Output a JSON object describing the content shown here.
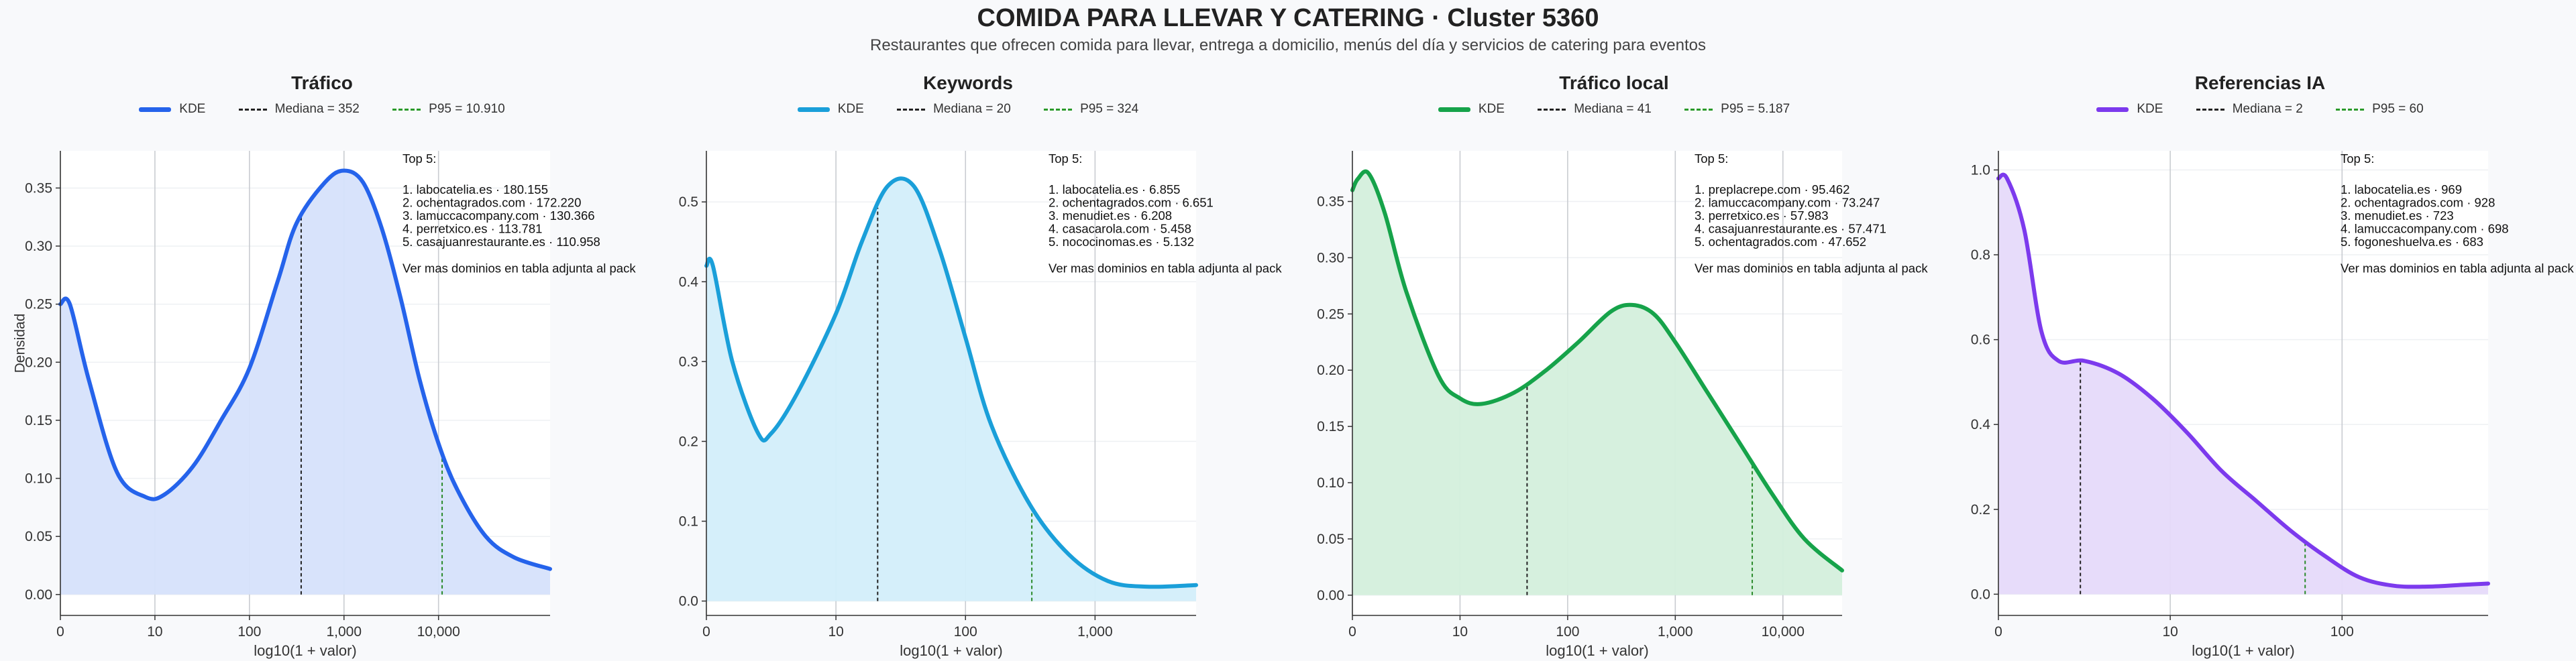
{
  "page": {
    "title": "COMIDA PARA LLEVAR Y CATERING · Cluster 5360",
    "subtitle": "Restaurantes que ofrecen comida para llevar, entrega a domicilio, menús del día y servicios de catering para eventos",
    "ylabel": "Densidad"
  },
  "chart_data": [
    {
      "type": "area",
      "title": "Tráfico",
      "color": "#2563eb",
      "fill": "#d6e2fb",
      "xlabel": "log10(1 + valor)",
      "ylabel": "Densidad",
      "x_scale": "log10(1+x)",
      "xlim": [
        0,
        5.18
      ],
      "ylim": [
        -0.018,
        0.382
      ],
      "x_ticks": [
        0,
        1,
        2,
        3,
        4
      ],
      "x_tick_labels": [
        "0",
        "10",
        "100",
        "1,000",
        "10,000"
      ],
      "y_ticks": [
        0.0,
        0.05,
        0.1,
        0.15,
        0.2,
        0.25,
        0.3,
        0.35
      ],
      "y_tick_labels": [
        "0.00",
        "0.05",
        "0.10",
        "0.15",
        "0.20",
        "0.25",
        "0.30",
        "0.35"
      ],
      "grid": "vertical",
      "legend": {
        "kde": "KDE",
        "median": "Mediana = 352",
        "p95": "P95 = 10.910",
        "placement": "top-center"
      },
      "median_x": 2.547,
      "p95_x": 4.038,
      "kde_x": [
        0,
        0.1,
        0.3,
        0.6,
        0.9,
        1.1,
        1.4,
        1.7,
        2.0,
        2.3,
        2.5,
        2.8,
        3.0,
        3.2,
        3.4,
        3.6,
        3.8,
        4.0,
        4.2,
        4.5,
        4.8,
        5.18
      ],
      "kde_y": [
        0.25,
        0.25,
        0.185,
        0.105,
        0.084,
        0.086,
        0.11,
        0.15,
        0.195,
        0.27,
        0.32,
        0.355,
        0.365,
        0.355,
        0.315,
        0.255,
        0.185,
        0.13,
        0.09,
        0.05,
        0.032,
        0.022
      ],
      "top5": {
        "heading": "Top 5:",
        "items": [
          "1. labocatelia.es · 180.155",
          "2. ochentagrados.com · 172.220",
          "3. lamuccacompany.com · 130.366",
          "4. perretxico.es · 113.781",
          "5. casajuanrestaurante.es · 110.958"
        ],
        "footer": "Ver mas dominios en tabla adjunta al pack"
      }
    },
    {
      "type": "area",
      "title": "Keywords",
      "color": "#1a9fd9",
      "fill": "#d3eefa",
      "xlabel": "log10(1 + valor)",
      "x_scale": "log10(1+x)",
      "xlim": [
        0,
        3.78
      ],
      "ylim": [
        -0.018,
        0.564
      ],
      "x_ticks": [
        0,
        1,
        2,
        3
      ],
      "x_tick_labels": [
        "0",
        "10",
        "100",
        "1,000"
      ],
      "y_ticks": [
        0.0,
        0.1,
        0.2,
        0.3,
        0.4,
        0.5
      ],
      "y_tick_labels": [
        "0.0",
        "0.1",
        "0.2",
        "0.3",
        "0.4",
        "0.5"
      ],
      "grid": "vertical",
      "legend": {
        "kde": "KDE",
        "median": "Mediana = 20",
        "p95": "P95 = 324",
        "placement": "top-center"
      },
      "median_x": 1.322,
      "p95_x": 2.512,
      "kde_x": [
        0,
        0.05,
        0.2,
        0.4,
        0.5,
        0.7,
        1.0,
        1.2,
        1.4,
        1.6,
        1.8,
        2.0,
        2.2,
        2.5,
        2.8,
        3.1,
        3.4,
        3.78
      ],
      "kde_y": [
        0.42,
        0.42,
        0.3,
        0.21,
        0.21,
        0.26,
        0.36,
        0.45,
        0.52,
        0.52,
        0.44,
        0.33,
        0.22,
        0.12,
        0.058,
        0.025,
        0.018,
        0.02
      ],
      "top5": {
        "heading": "Top 5:",
        "items": [
          "1. labocatelia.es · 6.855",
          "2. ochentagrados.com · 6.651",
          "3. menudiet.es · 6.208",
          "4. casacarola.com · 5.458",
          "5. nococinomas.es · 5.132"
        ],
        "footer": "Ver mas dominios en tabla adjunta al pack"
      }
    },
    {
      "type": "area",
      "title": "Tráfico local",
      "color": "#16a34a",
      "fill": "#d4efdc",
      "xlabel": "log10(1 + valor)",
      "x_scale": "log10(1+x)",
      "xlim": [
        0,
        4.55
      ],
      "ylim": [
        -0.018,
        0.395
      ],
      "x_ticks": [
        0,
        1,
        2,
        3,
        4
      ],
      "x_tick_labels": [
        "0",
        "10",
        "100",
        "1,000",
        "10,000"
      ],
      "y_ticks": [
        0.0,
        0.05,
        0.1,
        0.15,
        0.2,
        0.25,
        0.3,
        0.35
      ],
      "y_tick_labels": [
        "0.00",
        "0.05",
        "0.10",
        "0.15",
        "0.20",
        "0.25",
        "0.30",
        "0.35"
      ],
      "grid": "vertical",
      "legend": {
        "kde": "KDE",
        "median": "Mediana = 41",
        "p95": "P95 = 5.187",
        "placement": "top-center"
      },
      "median_x": 1.623,
      "p95_x": 3.715,
      "kde_x": [
        0,
        0.05,
        0.15,
        0.3,
        0.5,
        0.8,
        1.0,
        1.2,
        1.5,
        1.8,
        2.1,
        2.4,
        2.6,
        2.8,
        3.0,
        3.3,
        3.6,
        3.9,
        4.2,
        4.55
      ],
      "kde_y": [
        0.36,
        0.37,
        0.375,
        0.34,
        0.27,
        0.195,
        0.175,
        0.17,
        0.18,
        0.2,
        0.225,
        0.252,
        0.258,
        0.25,
        0.225,
        0.18,
        0.135,
        0.09,
        0.05,
        0.022
      ],
      "top5": {
        "heading": "Top 5:",
        "items": [
          "1. preplacrepe.com · 95.462",
          "2. lamuccacompany.com · 73.247",
          "3. perretxico.es · 57.983",
          "4. casajuanrestaurante.es · 57.471",
          "5. ochentagrados.com · 47.652"
        ],
        "footer": "Ver mas dominios en tabla adjunta al pack"
      }
    },
    {
      "type": "area",
      "title": "Referencias IA",
      "color": "#7c3aed",
      "fill": "#e6dafa",
      "xlabel": "log10(1 + valor)",
      "x_scale": "log10(1+x)",
      "xlim": [
        0,
        2.85
      ],
      "ylim": [
        -0.05,
        1.045
      ],
      "x_ticks": [
        0,
        1,
        2
      ],
      "x_tick_labels": [
        "0",
        "10",
        "100"
      ],
      "y_ticks": [
        0.0,
        0.2,
        0.4,
        0.6,
        0.8,
        1.0
      ],
      "y_tick_labels": [
        "0.0",
        "0.2",
        "0.4",
        "0.6",
        "0.8",
        "1.0"
      ],
      "grid": "vertical",
      "legend": {
        "kde": "KDE",
        "median": "Mediana = 2",
        "p95": "P95 = 60",
        "placement": "top-center"
      },
      "median_x": 0.477,
      "p95_x": 1.785,
      "kde_x": [
        0,
        0.05,
        0.15,
        0.25,
        0.35,
        0.5,
        0.7,
        0.9,
        1.1,
        1.3,
        1.5,
        1.7,
        1.9,
        2.1,
        2.3,
        2.5,
        2.7,
        2.85
      ],
      "kde_y": [
        0.98,
        0.98,
        0.86,
        0.62,
        0.55,
        0.55,
        0.52,
        0.46,
        0.38,
        0.29,
        0.22,
        0.15,
        0.09,
        0.04,
        0.02,
        0.018,
        0.022,
        0.025
      ],
      "top5": {
        "heading": "Top 5:",
        "items": [
          "1. labocatelia.es · 969",
          "2. ochentagrados.com · 928",
          "3. menudiet.es · 723",
          "4. lamuccacompany.com · 698",
          "5. fogoneshuelva.es · 683"
        ],
        "footer": "Ver mas dominios en tabla adjunta al pack"
      }
    }
  ]
}
